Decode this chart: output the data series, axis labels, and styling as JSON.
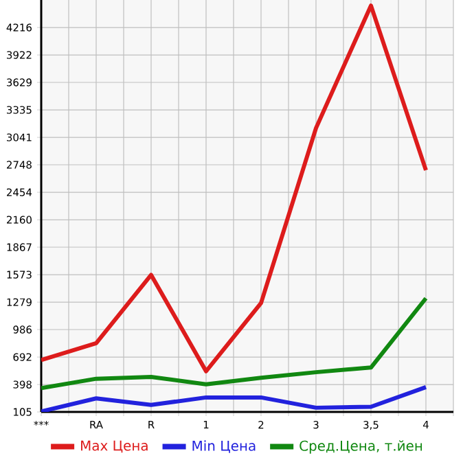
{
  "chart_data": {
    "type": "line",
    "categories": [
      "***",
      "RA",
      "R",
      "1",
      "2",
      "3",
      "3,5",
      "4"
    ],
    "series": [
      {
        "name": "Max Цена",
        "color": "#dd1c1c",
        "values": [
          660,
          840,
          1570,
          540,
          1270,
          3140,
          4450,
          2690
        ]
      },
      {
        "name": "Min Цена",
        "color": "#2222dd",
        "values": [
          110,
          250,
          180,
          260,
          260,
          150,
          160,
          370
        ]
      },
      {
        "name": "Сред.Цена, т.йен",
        "color": "#118811",
        "values": [
          360,
          460,
          480,
          400,
          470,
          530,
          580,
          1320
        ]
      }
    ],
    "ylim": [
      105,
      4510
    ],
    "yticks": [
      105,
      398,
      692,
      986,
      1279,
      1573,
      1867,
      2160,
      2454,
      2748,
      3041,
      3335,
      3629,
      3922,
      4216
    ],
    "grid": true,
    "legend": "bottom",
    "marker": "none",
    "line_style": "solid"
  }
}
